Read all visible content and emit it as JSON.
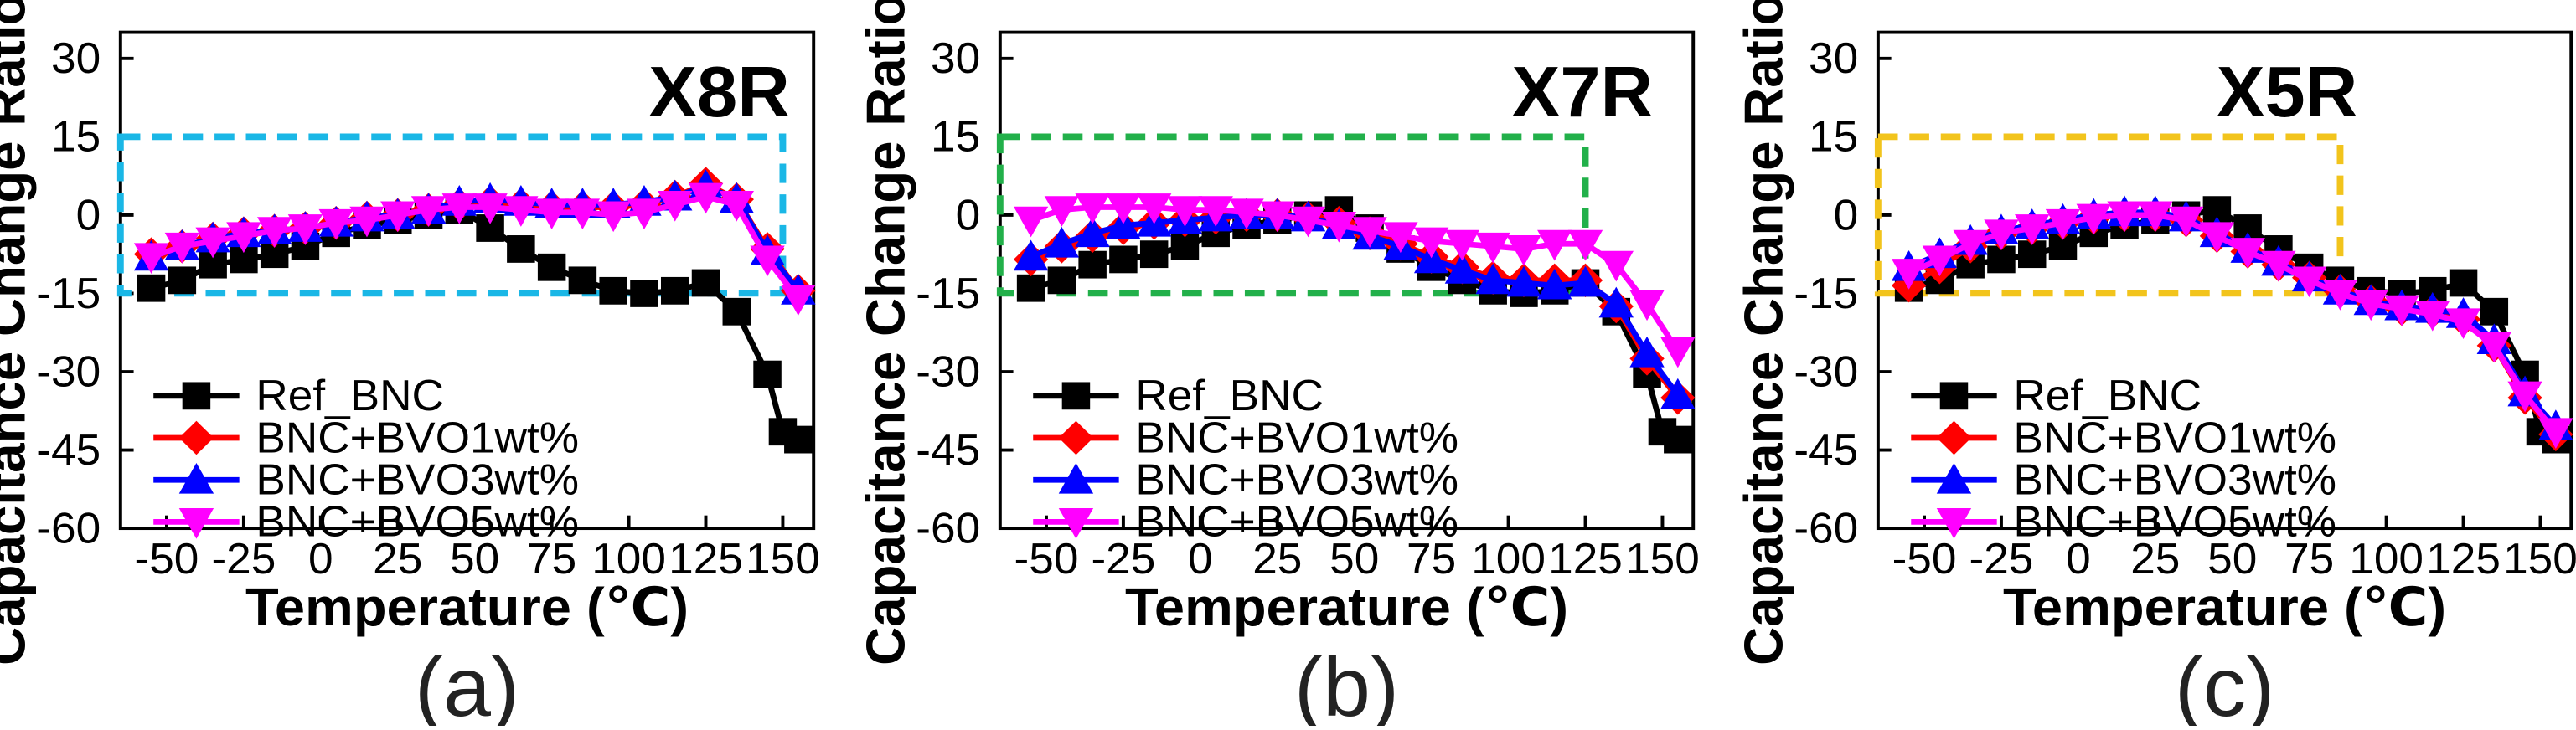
{
  "figure": {
    "panel_labels": [
      "(a)",
      "(b)",
      "(c)"
    ]
  },
  "colors": {
    "Ref_BNC": "#000000",
    "BNC+BVO1wt%": "#ff0000",
    "BNC+BVO3wt%": "#0000ff",
    "BNC+BVO5wt%": "#ff00ff"
  },
  "chart_data": [
    {
      "type": "line",
      "region_label": "X8R",
      "region": {
        "x": [
          -65,
          150
        ],
        "y": [
          -15,
          15
        ],
        "color": "#1ab7e6"
      },
      "xlabel": "Temperature (℃)",
      "ylabel": "Capacitance Change Ratio (%)",
      "xlim": [
        -65,
        160
      ],
      "ylim": [
        -60,
        35
      ],
      "xticks": [
        -50,
        -25,
        0,
        25,
        50,
        75,
        100,
        125,
        150
      ],
      "yticks": [
        -60,
        -45,
        -30,
        -15,
        0,
        15,
        30
      ],
      "legend_position": "bottom-left",
      "series": [
        {
          "name": "Ref_BNC",
          "marker": "square",
          "color": "#000000",
          "x": [
            -55,
            -45,
            -35,
            -25,
            -15,
            -5,
            5,
            15,
            25,
            35,
            45,
            55,
            65,
            75,
            85,
            95,
            105,
            115,
            125,
            135,
            145,
            150,
            155
          ],
          "y": [
            -14,
            -12.5,
            -9.5,
            -8.5,
            -7.5,
            -6,
            -3.5,
            -2,
            -1,
            0,
            1,
            -2.5,
            -6.5,
            -10,
            -12.5,
            -14.5,
            -15,
            -14.5,
            -13,
            -18.5,
            -30.5,
            -41.5,
            -43
          ]
        },
        {
          "name": "BNC+BVO1wt%",
          "marker": "diamond",
          "color": "#ff0000",
          "x": [
            -55,
            -45,
            -35,
            -25,
            -15,
            -5,
            5,
            15,
            25,
            35,
            45,
            55,
            65,
            75,
            85,
            95,
            105,
            115,
            125,
            135,
            145,
            155
          ],
          "y": [
            -7.5,
            -6,
            -4.5,
            -3.5,
            -3,
            -2.5,
            -1.5,
            -0.5,
            0,
            1,
            2,
            2.5,
            2,
            1.5,
            1.5,
            1.5,
            2,
            3.5,
            6,
            3,
            -6.5,
            -14.5
          ]
        },
        {
          "name": "BNC+BVO3wt%",
          "marker": "triangle",
          "color": "#0000ff",
          "x": [
            -55,
            -45,
            -35,
            -25,
            -15,
            -5,
            5,
            15,
            25,
            35,
            45,
            55,
            65,
            75,
            85,
            95,
            105,
            115,
            125,
            135,
            145,
            155
          ],
          "y": [
            -8,
            -6,
            -4.5,
            -3.5,
            -3,
            -2.5,
            -1.5,
            -0.5,
            0,
            1,
            2.5,
            3,
            2.5,
            2,
            2,
            2,
            2.5,
            3.5,
            5.5,
            3,
            -7,
            -14.5
          ]
        },
        {
          "name": "BNC+BVO5wt%",
          "marker": "triangle-down",
          "color": "#ff00ff",
          "x": [
            -55,
            -45,
            -35,
            -25,
            -15,
            -5,
            5,
            15,
            25,
            35,
            45,
            55,
            65,
            75,
            85,
            95,
            105,
            115,
            125,
            135,
            145,
            155
          ],
          "y": [
            -8,
            -6,
            -5,
            -4,
            -3,
            -2.5,
            -1.5,
            -1,
            0,
            1,
            1.5,
            1.5,
            1,
            0.5,
            0.5,
            0,
            0.5,
            2,
            3.5,
            2,
            -8.5,
            -16
          ]
        }
      ]
    },
    {
      "type": "line",
      "region_label": "X7R",
      "region": {
        "x": [
          -65,
          125
        ],
        "y": [
          -15,
          15
        ],
        "color": "#22b04a"
      },
      "xlabel": "Temperature (℃)",
      "ylabel": "Capacitance Change Ratio (%)",
      "xlim": [
        -65,
        160
      ],
      "ylim": [
        -60,
        35
      ],
      "xticks": [
        -50,
        -25,
        0,
        25,
        50,
        75,
        100,
        125,
        150
      ],
      "yticks": [
        -60,
        -45,
        -30,
        -15,
        0,
        15,
        30
      ],
      "legend_position": "bottom-left",
      "series": [
        {
          "name": "Ref_BNC",
          "marker": "square",
          "color": "#000000",
          "x": [
            -55,
            -45,
            -35,
            -25,
            -15,
            -5,
            5,
            15,
            25,
            35,
            45,
            55,
            65,
            75,
            85,
            95,
            105,
            115,
            125,
            135,
            145,
            150,
            155
          ],
          "y": [
            -14,
            -12.5,
            -9.5,
            -8.5,
            -7.5,
            -6,
            -3.5,
            -2,
            -1,
            0,
            1,
            -2.5,
            -6.5,
            -10,
            -12.5,
            -14.5,
            -15,
            -14.5,
            -13,
            -18.5,
            -30.5,
            -41.5,
            -43
          ]
        },
        {
          "name": "BNC+BVO1wt%",
          "marker": "diamond",
          "color": "#ff0000",
          "x": [
            -55,
            -45,
            -35,
            -25,
            -15,
            -5,
            5,
            15,
            25,
            35,
            45,
            55,
            65,
            75,
            85,
            95,
            105,
            115,
            125,
            135,
            145,
            155
          ],
          "y": [
            -8.5,
            -6,
            -4,
            -2.5,
            -1.5,
            -1,
            -0.5,
            0,
            0,
            -0.5,
            -1.5,
            -3.5,
            -5.5,
            -8,
            -10,
            -12,
            -12.5,
            -12.5,
            -12.5,
            -17.5,
            -27.5,
            -35
          ]
        },
        {
          "name": "BNC+BVO3wt%",
          "marker": "triangle",
          "color": "#0000ff",
          "x": [
            -55,
            -45,
            -35,
            -25,
            -15,
            -5,
            5,
            15,
            25,
            35,
            45,
            55,
            65,
            75,
            85,
            95,
            105,
            115,
            125,
            135,
            145,
            155
          ],
          "y": [
            -8,
            -5.5,
            -3.5,
            -2,
            -1.5,
            -1,
            -0.5,
            0,
            0,
            -0.5,
            -2,
            -4,
            -6,
            -8.5,
            -10.5,
            -12.5,
            -13,
            -13.5,
            -13,
            -17,
            -26.5,
            -34.5
          ]
        },
        {
          "name": "BNC+BVO5wt%",
          "marker": "triangle-down",
          "color": "#ff00ff",
          "x": [
            -55,
            -45,
            -35,
            -25,
            -15,
            -5,
            5,
            15,
            25,
            35,
            45,
            55,
            65,
            75,
            85,
            95,
            105,
            115,
            125,
            135,
            145,
            155
          ],
          "y": [
            -1,
            1,
            1.5,
            1.5,
            1.5,
            1,
            1,
            0.5,
            0,
            -1,
            -2,
            -3,
            -4,
            -5,
            -5.5,
            -6,
            -6.5,
            -5.5,
            -5.5,
            -9.5,
            -17,
            -26
          ]
        }
      ]
    },
    {
      "type": "line",
      "region_label": "X5R",
      "region": {
        "x": [
          -65,
          85
        ],
        "y": [
          -15,
          15
        ],
        "color": "#f2c41c"
      },
      "xlabel": "Temperature (℃)",
      "ylabel": "Capacitance Change Ratio (%)",
      "xlim": [
        -65,
        160
      ],
      "ylim": [
        -60,
        35
      ],
      "xticks": [
        -50,
        -25,
        0,
        25,
        50,
        75,
        100,
        125,
        150
      ],
      "yticks": [
        -60,
        -45,
        -30,
        -15,
        0,
        15,
        30
      ],
      "legend_position": "bottom-left",
      "series": [
        {
          "name": "Ref_BNC",
          "marker": "square",
          "color": "#000000",
          "x": [
            -55,
            -45,
            -35,
            -25,
            -15,
            -5,
            5,
            15,
            25,
            35,
            45,
            55,
            65,
            75,
            85,
            95,
            105,
            115,
            125,
            135,
            145,
            150,
            155
          ],
          "y": [
            -14,
            -12.5,
            -9.5,
            -8.5,
            -7.5,
            -6,
            -3.5,
            -2,
            -1,
            0,
            1,
            -2.5,
            -6.5,
            -10,
            -12.5,
            -14.5,
            -15,
            -14.5,
            -13,
            -18.5,
            -30.5,
            -41.5,
            -43
          ]
        },
        {
          "name": "BNC+BVO1wt%",
          "marker": "diamond",
          "color": "#ff0000",
          "x": [
            -55,
            -45,
            -35,
            -25,
            -15,
            -5,
            5,
            15,
            25,
            35,
            45,
            55,
            65,
            75,
            85,
            95,
            105,
            115,
            125,
            135,
            145,
            155
          ],
          "y": [
            -13.5,
            -10,
            -6,
            -3.5,
            -2.5,
            -1.5,
            -0.5,
            0,
            0,
            -1,
            -4,
            -7,
            -9.5,
            -12,
            -14.5,
            -16.5,
            -18,
            -18.5,
            -20,
            -25,
            -35,
            -42
          ]
        },
        {
          "name": "BNC+BVO3wt%",
          "marker": "triangle",
          "color": "#0000ff",
          "x": [
            -55,
            -45,
            -35,
            -25,
            -15,
            -5,
            5,
            15,
            25,
            35,
            45,
            55,
            65,
            75,
            85,
            95,
            105,
            115,
            125,
            135,
            145,
            155
          ],
          "y": [
            -10,
            -7.5,
            -5,
            -3,
            -2,
            -1,
            0,
            0.5,
            0.5,
            -0.5,
            -3.5,
            -6.5,
            -9,
            -12,
            -14.5,
            -16.5,
            -17.5,
            -18,
            -19,
            -24,
            -34,
            -40.5
          ]
        },
        {
          "name": "BNC+BVO5wt%",
          "marker": "triangle-down",
          "color": "#ff00ff",
          "x": [
            -55,
            -45,
            -35,
            -25,
            -15,
            -5,
            5,
            15,
            25,
            35,
            45,
            55,
            65,
            75,
            85,
            95,
            105,
            115,
            125,
            135,
            145,
            155
          ],
          "y": [
            -11,
            -8.5,
            -5.5,
            -3.5,
            -2.5,
            -1.5,
            -0.5,
            0,
            0,
            -1,
            -4,
            -7,
            -9.5,
            -12.5,
            -15,
            -17,
            -18,
            -19,
            -20.5,
            -25,
            -34.5,
            -41.5
          ]
        }
      ]
    }
  ]
}
